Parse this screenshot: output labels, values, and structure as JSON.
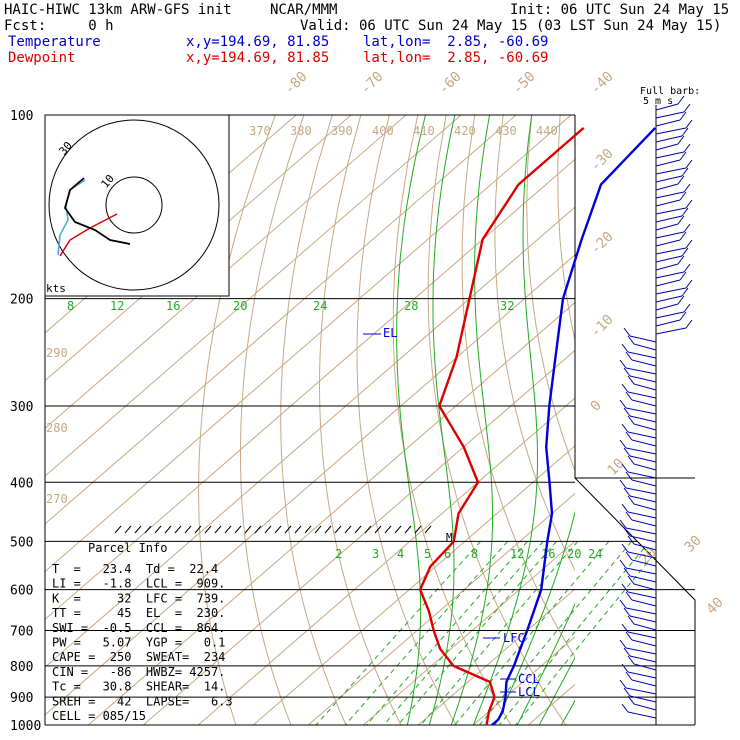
{
  "header": {
    "model": "HAIC-HIWC 13km ARW-GFS init",
    "org": "NCAR/MMM",
    "init": "Init: 06 UTC Sun 24 May 15",
    "fcst": "Fcst:     0 h",
    "valid": "Valid: 06 UTC Sun 24 May 15 (03 LST Sun 24 May 15)",
    "temp_label": "Temperature",
    "temp_loc": "x,y=194.69, 81.85    lat,lon=  2.85, -60.69",
    "dew_label": "Dewpoint",
    "dew_loc": "x,y=194.69, 81.85    lat,lon=  2.85, -60.69",
    "barb_label1": "Full barb:",
    "barb_label2": "5 m s",
    "colors": {
      "temperature": "#0000dd",
      "dewpoint": "#dd0000",
      "theta": "#c8a882",
      "mixing": "#22aa22",
      "hodograph": "#000000"
    }
  },
  "parcel": {
    "title": "Parcel Info",
    "rows": [
      "T  =   23.4  Td =  22.4",
      "LI =   -1.8  LCL =  909.",
      "K  =     32  LFC =  739.",
      "TT =     45  EL  =  230.",
      "SWI =  -0.5  CCL =  864.",
      "PW =   5.07  YGP =   0.1",
      "CAPE =  250  SWEAT=  234",
      "CIN =   -86  HWBZ= 4257.",
      "Tc =   30.8  SHEAR=  14.",
      "SREH =   42  LAPSE=   6.3",
      "CELL = 085/15"
    ]
  },
  "hodograph": {
    "speed_labels": [
      "10",
      "30"
    ],
    "unit": "kts"
  },
  "chart_data": {
    "type": "line",
    "title": "",
    "xlabel": "",
    "ylabel": "",
    "pressure_levels": [
      "100",
      "200",
      "300",
      "400",
      "500",
      "600",
      "700",
      "800",
      "900",
      "1000"
    ],
    "isotherm_labels": [
      "-80",
      "-70",
      "-60",
      "-50",
      "-40",
      "-30",
      "-20",
      "-10",
      "0",
      "10",
      "20",
      "30",
      "40"
    ],
    "theta_labels_top": [
      "370",
      "380",
      "390",
      "400",
      "410",
      "420",
      "430",
      "440"
    ],
    "theta_labels_left": [
      "290",
      "280",
      "270"
    ],
    "mixing_ratio_labels_upper": [
      "8",
      "12",
      "16",
      "20",
      "24",
      "28",
      "32"
    ],
    "mixing_ratio_labels_lower": [
      "2",
      "3",
      "4",
      "5",
      "6",
      "8",
      "12",
      "16",
      "20",
      "24"
    ],
    "annotations": [
      "EL",
      "LFC",
      "CCL",
      "LCL",
      "M"
    ],
    "series": [
      {
        "name": "Temperature",
        "pressure": [
          105,
          130,
          160,
          200,
          250,
          300,
          350,
          400,
          450,
          500,
          600,
          700,
          800,
          850,
          900,
          950,
          980,
          1000
        ],
        "temperature": [
          -72,
          -70,
          -62,
          -53,
          -42,
          -33,
          -25,
          -17,
          -10,
          -5,
          4,
          10,
          15,
          17,
          20,
          22.5,
          23.4,
          23.4
        ]
      },
      {
        "name": "Dewpoint",
        "pressure": [
          105,
          130,
          160,
          200,
          250,
          300,
          350,
          400,
          450,
          500,
          550,
          600,
          650,
          700,
          750,
          800,
          850,
          900,
          950,
          1000
        ],
        "dewpoint": [
          -85,
          -85,
          -80,
          -70,
          -60,
          -53,
          -40,
          -30,
          -27,
          -22,
          -21,
          -18,
          -12,
          -7,
          -2,
          4,
          14,
          18,
          20,
          22.4
        ]
      }
    ]
  }
}
